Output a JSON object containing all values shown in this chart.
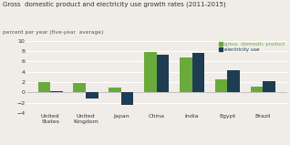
{
  "title": "Gross  domestic product and electricity use growth rates (2011-2015)",
  "subtitle": "percent per year (five-year  average)",
  "categories": [
    "United\nStates",
    "United\nKingdom",
    "Japan",
    "China",
    "India",
    "Egypt",
    "Brazil"
  ],
  "gdp_values": [
    2.0,
    1.9,
    1.0,
    7.8,
    6.7,
    2.6,
    1.1
  ],
  "elec_values": [
    0.2,
    -1.2,
    -2.4,
    7.3,
    7.6,
    4.3,
    2.2
  ],
  "gdp_color": "#6aaa3a",
  "elec_color": "#1f3d52",
  "ylim": [
    -4,
    10
  ],
  "yticks": [
    -4,
    -2,
    0,
    2,
    4,
    6,
    8,
    10
  ],
  "legend_gdp": "gross  domestic product",
  "legend_elec": "electricity use",
  "bg_color": "#f0ede8",
  "grid_color": "#ffffff",
  "bar_width": 0.35,
  "title_fontsize": 5.0,
  "subtitle_fontsize": 4.2,
  "tick_fontsize": 4.5
}
